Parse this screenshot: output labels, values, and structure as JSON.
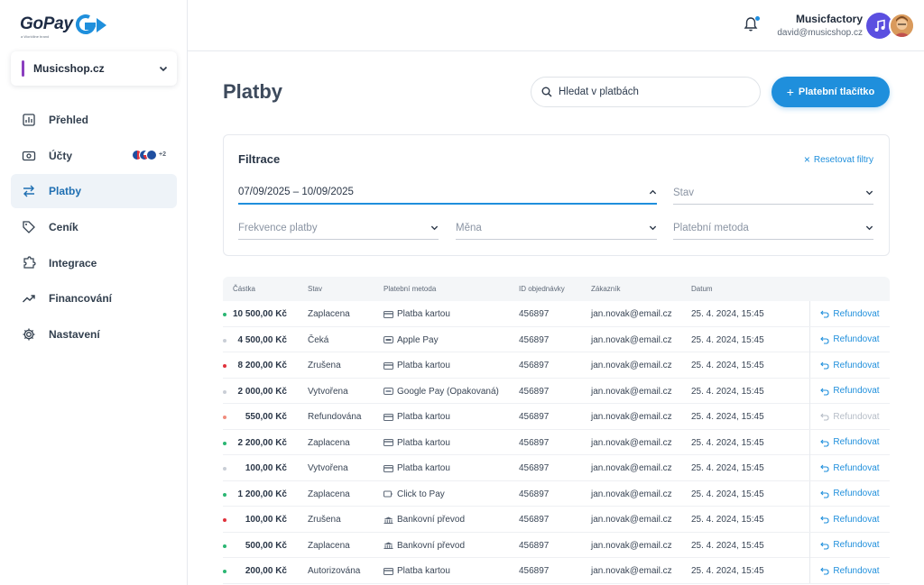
{
  "brand": {
    "logo_text": "GoPay",
    "logo_sub": "a Worldline brand",
    "accent": "#1f8fdc"
  },
  "shop": {
    "name": "Musicshop.cz"
  },
  "nav": [
    {
      "label": "Přehled",
      "icon": "chart-icon"
    },
    {
      "label": "Účty",
      "icon": "wallet-icon",
      "badge": "+2"
    },
    {
      "label": "Platby",
      "icon": "transfer-arrows-icon",
      "active": true
    },
    {
      "label": "Ceník",
      "icon": "tag-icon"
    },
    {
      "label": "Integrace",
      "icon": "puzzle-icon"
    },
    {
      "label": "Financování",
      "icon": "trend-up-icon"
    },
    {
      "label": "Nastavení",
      "icon": "gear-icon"
    }
  ],
  "user": {
    "name": "Musicfactory",
    "email": "david@musicshop.cz"
  },
  "page": {
    "title": "Platby"
  },
  "search": {
    "placeholder": "Hledat v platbách"
  },
  "primary_button": {
    "label": "Platební tlačítko"
  },
  "filters": {
    "title": "Filtrace",
    "reset_label": "Resetovat filtry",
    "date_range": "07/09/2025 – 10/09/2025",
    "status": "Stav",
    "frequency": "Frekvence platby",
    "currency": "Měna",
    "method": "Platební metoda"
  },
  "table": {
    "headers": [
      "Částka",
      "Stav",
      "Platební metoda",
      "ID objednávky",
      "Zákazník",
      "Datum"
    ],
    "refund_label": "Refundovat",
    "rows": [
      {
        "amount": "10 500,00 Kč",
        "dot": "#2bb673",
        "status": "Zaplacena",
        "method": "Platba kartou",
        "method_icon": "card-icon",
        "order": "456897",
        "customer": "jan.novak@email.cz",
        "date": "25. 4. 2024, 15:45",
        "refund_enabled": true
      },
      {
        "amount": "4 500,00 Kč",
        "dot": "#c9ced6",
        "status": "Čeká",
        "method": "Apple Pay",
        "method_icon": "apple-pay-icon",
        "order": "456897",
        "customer": "jan.novak@email.cz",
        "date": "25. 4. 2024, 15:45",
        "refund_enabled": true
      },
      {
        "amount": "8 200,00 Kč",
        "dot": "#e0323c",
        "status": "Zrušena",
        "method": "Platba kartou",
        "method_icon": "card-icon",
        "order": "456897",
        "customer": "jan.novak@email.cz",
        "date": "25. 4. 2024, 15:45",
        "refund_enabled": true
      },
      {
        "amount": "2 000,00 Kč",
        "dot": "#c9ced6",
        "status": "Vytvořena",
        "method": "Google Pay (Opakovaná)",
        "method_icon": "google-pay-icon",
        "order": "456897",
        "customer": "jan.novak@email.cz",
        "date": "25. 4. 2024, 15:45",
        "refund_enabled": true
      },
      {
        "amount": "550,00 Kč",
        "dot": "#f08c7d",
        "status": "Refundována",
        "method": "Platba kartou",
        "method_icon": "card-icon",
        "order": "456897",
        "customer": "jan.novak@email.cz",
        "date": "25. 4. 2024, 15:45",
        "refund_enabled": false
      },
      {
        "amount": "2 200,00 Kč",
        "dot": "#2bb673",
        "status": "Zaplacena",
        "method": "Platba kartou",
        "method_icon": "card-icon",
        "order": "456897",
        "customer": "jan.novak@email.cz",
        "date": "25. 4. 2024, 15:45",
        "refund_enabled": true
      },
      {
        "amount": "100,00 Kč",
        "dot": "#c9ced6",
        "status": "Vytvořena",
        "method": "Platba kartou",
        "method_icon": "card-icon",
        "order": "456897",
        "customer": "jan.novak@email.cz",
        "date": "25. 4. 2024, 15:45",
        "refund_enabled": true
      },
      {
        "amount": "1 200,00 Kč",
        "dot": "#2bb673",
        "status": "Zaplacena",
        "method": "Click to Pay",
        "method_icon": "click-to-pay-icon",
        "order": "456897",
        "customer": "jan.novak@email.cz",
        "date": "25. 4. 2024, 15:45",
        "refund_enabled": true
      },
      {
        "amount": "100,00 Kč",
        "dot": "#e0323c",
        "status": "Zrušena",
        "method": "Bankovní převod",
        "method_icon": "bank-icon",
        "order": "456897",
        "customer": "jan.novak@email.cz",
        "date": "25. 4. 2024, 15:45",
        "refund_enabled": true
      },
      {
        "amount": "500,00 Kč",
        "dot": "#2bb673",
        "status": "Zaplacena",
        "method": "Bankovní převod",
        "method_icon": "bank-icon",
        "order": "456897",
        "customer": "jan.novak@email.cz",
        "date": "25. 4. 2024, 15:45",
        "refund_enabled": true
      },
      {
        "amount": "200,00 Kč",
        "dot": "#2bb673",
        "status": "Autorizována",
        "method": "Platba kartou",
        "method_icon": "card-icon",
        "order": "456897",
        "customer": "jan.novak@email.cz",
        "date": "25. 4. 2024, 15:45",
        "refund_enabled": true
      }
    ]
  }
}
